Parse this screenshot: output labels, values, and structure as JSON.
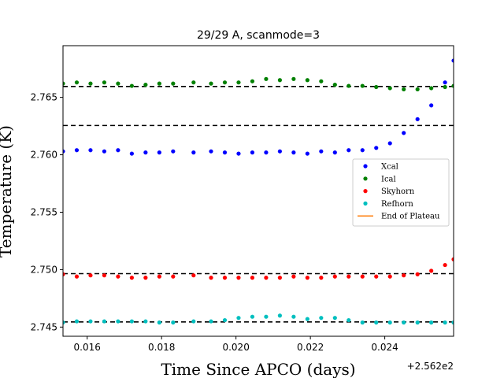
{
  "chart_data": {
    "type": "scatter",
    "title": "29/29 A, scanmode=3",
    "xlabel": "Time Since APCO (days)",
    "ylabel": "Temperature (K)",
    "x_offset_label": "+2.562e2",
    "xlim": [
      0.01535,
      0.02585
    ],
    "ylim": [
      2.7442,
      2.7695
    ],
    "xticks": [
      0.016,
      0.018,
      0.02,
      0.022,
      0.024
    ],
    "xtick_labels": [
      "0.016",
      "0.018",
      "0.020",
      "0.022",
      "0.024"
    ],
    "yticks": [
      2.745,
      2.75,
      2.755,
      2.76,
      2.765
    ],
    "ytick_labels": [
      "2.745",
      "2.750",
      "2.755",
      "2.760",
      "2.765"
    ],
    "x": [
      0.01535,
      0.01572,
      0.01609,
      0.01646,
      0.01683,
      0.0172,
      0.01757,
      0.01794,
      0.01831,
      0.01886,
      0.01933,
      0.0197,
      0.02007,
      0.02044,
      0.02081,
      0.02118,
      0.02155,
      0.02192,
      0.02229,
      0.02266,
      0.02303,
      0.0234,
      0.02377,
      0.02414,
      0.02451,
      0.02488,
      0.02525,
      0.02562,
      0.02585
    ],
    "series": [
      {
        "name": "Xcal",
        "color": "#0000ff",
        "values": [
          2.7603,
          2.7604,
          2.7604,
          2.7603,
          2.7604,
          2.7601,
          2.7602,
          2.7602,
          2.7603,
          2.7602,
          2.7603,
          2.7602,
          2.7601,
          2.7602,
          2.7602,
          2.7603,
          2.7602,
          2.7601,
          2.7603,
          2.7602,
          2.7604,
          2.7604,
          2.7606,
          2.761,
          2.7619,
          2.7631,
          2.7643,
          2.7663,
          2.7682
        ]
      },
      {
        "name": "Ical",
        "color": "#008000",
        "values": [
          2.7662,
          2.7663,
          2.7662,
          2.7663,
          2.7662,
          2.766,
          2.7661,
          2.7662,
          2.7662,
          2.7663,
          2.7662,
          2.7663,
          2.7663,
          2.7664,
          2.7666,
          2.7665,
          2.7666,
          2.7665,
          2.7664,
          2.7661,
          2.766,
          2.766,
          2.7659,
          2.7658,
          2.7657,
          2.7657,
          2.7658,
          2.7659,
          2.766
        ]
      },
      {
        "name": "Skyhorn",
        "color": "#ff0000",
        "values": [
          2.7496,
          2.7494,
          2.7495,
          2.7495,
          2.7494,
          2.7493,
          2.7493,
          2.7494,
          2.7494,
          2.7495,
          2.7493,
          2.7493,
          2.7493,
          2.7493,
          2.7493,
          2.7493,
          2.7494,
          2.7493,
          2.7493,
          2.7494,
          2.7494,
          2.7494,
          2.7494,
          2.7494,
          2.7495,
          2.7496,
          2.7499,
          2.7504,
          2.7509
        ]
      },
      {
        "name": "Refhorn",
        "color": "#00bfbf",
        "values": [
          2.7454,
          2.7455,
          2.7455,
          2.7455,
          2.7455,
          2.7455,
          2.7455,
          2.7454,
          2.7454,
          2.7455,
          2.7455,
          2.7456,
          2.7458,
          2.7459,
          2.7459,
          2.746,
          2.7459,
          2.7457,
          2.7458,
          2.7458,
          2.7456,
          2.7454,
          2.7454,
          2.7454,
          2.7454,
          2.7454,
          2.7454,
          2.7454,
          2.7454
        ]
      }
    ],
    "hlines": [
      2.76595,
      2.76255,
      2.74965,
      2.74545
    ],
    "legend": {
      "placement": "center-right",
      "entries": [
        {
          "label": "Xcal",
          "marker": "dot",
          "color": "#0000ff"
        },
        {
          "label": "Ical",
          "marker": "dot",
          "color": "#008000"
        },
        {
          "label": "Skyhorn",
          "marker": "dot",
          "color": "#ff0000"
        },
        {
          "label": "Refhorn",
          "marker": "dot",
          "color": "#00bfbf"
        },
        {
          "label": "End of Plateau",
          "marker": "line",
          "color": "#ff7f0e"
        }
      ]
    },
    "grid": false
  }
}
